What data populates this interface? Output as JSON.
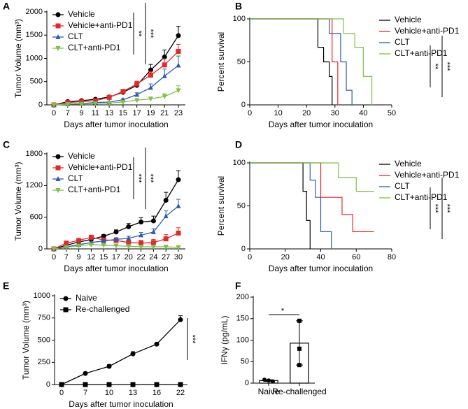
{
  "chart_data": [
    {
      "type": "line",
      "label": "A",
      "xlabel": "Days after tumor inoculation",
      "ylabel": "Tumor Volume (mm³)",
      "categories": [
        "0",
        "7",
        "9",
        "11",
        "13",
        "15",
        "17",
        "19",
        "21",
        "23"
      ],
      "ylim": [
        0,
        2000
      ],
      "yticks": [
        0,
        500,
        1000,
        1500,
        2000
      ],
      "legend": "upper left",
      "annotations": [
        "**",
        "***"
      ],
      "series": [
        {
          "name": "Vehicle",
          "color": "#000000",
          "marker": "circle",
          "values": [
            0,
            70,
            90,
            120,
            170,
            270,
            420,
            750,
            1030,
            1490
          ],
          "errors": [
            0,
            10,
            15,
            20,
            25,
            40,
            60,
            120,
            150,
            200
          ]
        },
        {
          "name": "Vehicle+anti-PD1",
          "color": "#e8272a",
          "marker": "square",
          "values": [
            0,
            50,
            70,
            90,
            160,
            290,
            450,
            640,
            860,
            1150
          ],
          "errors": [
            0,
            10,
            10,
            15,
            20,
            30,
            60,
            80,
            130,
            150
          ]
        },
        {
          "name": "CLT",
          "color": "#2a5db0",
          "marker": "triangle-up",
          "values": [
            0,
            20,
            30,
            50,
            60,
            110,
            220,
            370,
            620,
            850
          ],
          "errors": [
            0,
            5,
            8,
            10,
            15,
            20,
            40,
            80,
            150,
            200
          ]
        },
        {
          "name": "CLT+anti-PD1",
          "color": "#7dc242",
          "marker": "triangle-down",
          "values": [
            0,
            15,
            20,
            30,
            40,
            60,
            100,
            130,
            180,
            310
          ],
          "errors": [
            0,
            5,
            5,
            5,
            10,
            10,
            20,
            40,
            60,
            100
          ]
        }
      ]
    },
    {
      "type": "survival",
      "label": "B",
      "xlabel": "Days after tumor inoculation",
      "ylabel": "Percent survival",
      "xlim": [
        0,
        50
      ],
      "xticks": [
        0,
        10,
        20,
        30,
        40,
        50
      ],
      "ylim": [
        0,
        100
      ],
      "yticks": [
        0,
        50,
        100
      ],
      "legend": "upper right",
      "annotations": [
        "**",
        "***"
      ],
      "series": [
        {
          "name": "Vehicle",
          "color": "#000000",
          "x": [
            0,
            24,
            26,
            28,
            29
          ],
          "values": [
            100,
            67,
            50,
            33,
            0
          ]
        },
        {
          "name": "Vehicle+anti-PD1",
          "color": "#e8272a",
          "x": [
            0,
            29,
            31
          ],
          "values": [
            100,
            50,
            0
          ]
        },
        {
          "name": "CLT",
          "color": "#2a5db0",
          "x": [
            0,
            28,
            32,
            34,
            36
          ],
          "values": [
            100,
            83,
            50,
            17,
            0
          ]
        },
        {
          "name": "CLT+anti-PD1",
          "color": "#7dc242",
          "x": [
            0,
            33,
            37,
            40,
            43
          ],
          "values": [
            100,
            83,
            67,
            33,
            0
          ]
        }
      ]
    },
    {
      "type": "line",
      "label": "C",
      "xlabel": "Days after tumor inoculation",
      "ylabel": "Tumor Volume (mm³)",
      "categories": [
        "0",
        "7",
        "9",
        "12",
        "15",
        "17",
        "20",
        "22",
        "24",
        "27",
        "30"
      ],
      "ylim": [
        0,
        1800
      ],
      "yticks": [
        0,
        600,
        1200,
        1800
      ],
      "legend": "upper left",
      "annotations": [
        "***",
        "***"
      ],
      "series": [
        {
          "name": "Vehicle",
          "color": "#000000",
          "marker": "circle",
          "values": [
            0,
            70,
            130,
            180,
            240,
            320,
            420,
            510,
            530,
            920,
            1310
          ],
          "errors": [
            0,
            15,
            20,
            25,
            30,
            40,
            60,
            80,
            90,
            150,
            170
          ]
        },
        {
          "name": "Vehicle+anti-PD1",
          "color": "#e8272a",
          "marker": "square",
          "values": [
            0,
            110,
            160,
            220,
            170,
            160,
            120,
            110,
            120,
            190,
            300
          ],
          "errors": [
            0,
            20,
            25,
            30,
            30,
            40,
            40,
            50,
            60,
            80,
            100
          ]
        },
        {
          "name": "CLT",
          "color": "#2a5db0",
          "marker": "triangle-up",
          "values": [
            0,
            40,
            80,
            120,
            150,
            180,
            200,
            260,
            320,
            620,
            810
          ],
          "errors": [
            0,
            10,
            15,
            20,
            20,
            30,
            40,
            50,
            60,
            100,
            130
          ]
        },
        {
          "name": "CLT+anti-PD1",
          "color": "#7dc242",
          "marker": "triangle-down",
          "values": [
            0,
            30,
            60,
            80,
            70,
            60,
            50,
            40,
            40,
            40,
            30
          ],
          "errors": [
            0,
            10,
            15,
            20,
            20,
            20,
            15,
            15,
            15,
            10,
            10
          ]
        }
      ]
    },
    {
      "type": "survival",
      "label": "D",
      "xlabel": "Days after tumor inoculation",
      "ylabel": "Percent survival",
      "xlim": [
        0,
        80
      ],
      "xticks": [
        0,
        20,
        40,
        60,
        80
      ],
      "ylim": [
        0,
        100
      ],
      "yticks": [
        0,
        50,
        100
      ],
      "legend": "upper right",
      "annotations": [
        "***",
        "***"
      ],
      "series": [
        {
          "name": "Vehicle",
          "color": "#000000",
          "x": [
            0,
            30,
            32,
            34
          ],
          "values": [
            100,
            67,
            33,
            0
          ]
        },
        {
          "name": "Vehicle+anti-PD1",
          "color": "#e8272a",
          "x": [
            0,
            40,
            52,
            58,
            70
          ],
          "values": [
            100,
            60,
            40,
            20,
            20
          ]
        },
        {
          "name": "CLT",
          "color": "#2a5db0",
          "x": [
            0,
            34,
            37,
            40,
            46
          ],
          "values": [
            100,
            80,
            60,
            20,
            0
          ]
        },
        {
          "name": "CLT+anti-PD1",
          "color": "#7dc242",
          "x": [
            0,
            50,
            60,
            70
          ],
          "values": [
            100,
            83,
            67,
            67
          ]
        }
      ]
    },
    {
      "type": "line",
      "label": "E",
      "xlabel": "Days after tumor inoculation",
      "ylabel": "Tumor Volume (mm³)",
      "categories": [
        "0",
        "7",
        "10",
        "13",
        "16",
        "22"
      ],
      "ylim": [
        0,
        1000
      ],
      "yticks": [
        0,
        250,
        500,
        750,
        1000
      ],
      "legend": "upper left",
      "annotations": [
        "***"
      ],
      "series": [
        {
          "name": "Naive",
          "color": "#000000",
          "marker": "circle",
          "values": [
            0,
            125,
            205,
            345,
            455,
            730
          ],
          "errors": [
            0,
            10,
            20,
            25,
            15,
            45
          ]
        },
        {
          "name": "Re-challenged",
          "color": "#000000",
          "marker": "square",
          "values": [
            0,
            0,
            0,
            0,
            0,
            0
          ],
          "errors": [
            0,
            0,
            0,
            0,
            0,
            0
          ]
        }
      ]
    },
    {
      "type": "bar",
      "label": "F",
      "ylabel": "IFNγ (pg/mL)",
      "categories": [
        "Naive",
        "Re-challenged"
      ],
      "values": [
        6,
        93
      ],
      "points": [
        [
          8,
          6,
          4
        ],
        [
          145,
          80,
          42
        ]
      ],
      "markers": [
        "circle",
        "square"
      ],
      "ylim": [
        0,
        200
      ],
      "yticks": [
        0,
        50,
        100,
        150,
        200
      ],
      "annotations": [
        "*"
      ]
    }
  ]
}
